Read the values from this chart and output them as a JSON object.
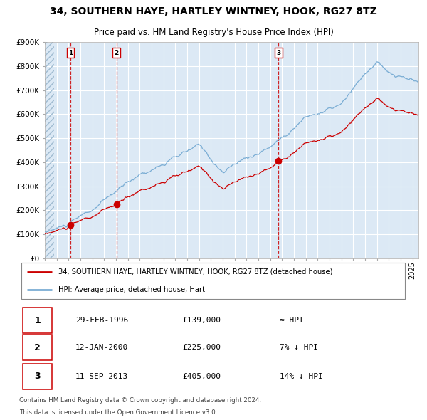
{
  "title": "34, SOUTHERN HAYE, HARTLEY WINTNEY, HOOK, RG27 8TZ",
  "subtitle": "Price paid vs. HM Land Registry's House Price Index (HPI)",
  "legend_line1": "34, SOUTHERN HAYE, HARTLEY WINTNEY, HOOK, RG27 8TZ (detached house)",
  "legend_line2": "HPI: Average price, detached house, Hart",
  "footnote1": "Contains HM Land Registry data © Crown copyright and database right 2024.",
  "footnote2": "This data is licensed under the Open Government Licence v3.0.",
  "sales": [
    {
      "label": "1",
      "date": "29-FEB-1996",
      "price": 139000,
      "x": 1996.16,
      "note": "≈ HPI"
    },
    {
      "label": "2",
      "date": "12-JAN-2000",
      "price": 225000,
      "x": 2000.03,
      "note": "7% ↓ HPI"
    },
    {
      "label": "3",
      "date": "11-SEP-2013",
      "price": 405000,
      "x": 2013.7,
      "note": "14% ↓ HPI"
    }
  ],
  "ylim": [
    0,
    900000
  ],
  "xlim": [
    1994.0,
    2025.5
  ],
  "yticks": [
    0,
    100000,
    200000,
    300000,
    400000,
    500000,
    600000,
    700000,
    800000,
    900000
  ],
  "ytick_labels": [
    "£0",
    "£100K",
    "£200K",
    "£300K",
    "£400K",
    "£500K",
    "£600K",
    "£700K",
    "£800K",
    "£900K"
  ],
  "bg_color": "#dce9f5",
  "grid_color": "#ffffff",
  "red_color": "#cc0000",
  "blue_color": "#7aadd4",
  "vline_color": "#cc0000",
  "sale_dot_color": "#cc0000",
  "sale_box_color": "#cc0000",
  "title_fontsize": 10,
  "subtitle_fontsize": 8.5
}
